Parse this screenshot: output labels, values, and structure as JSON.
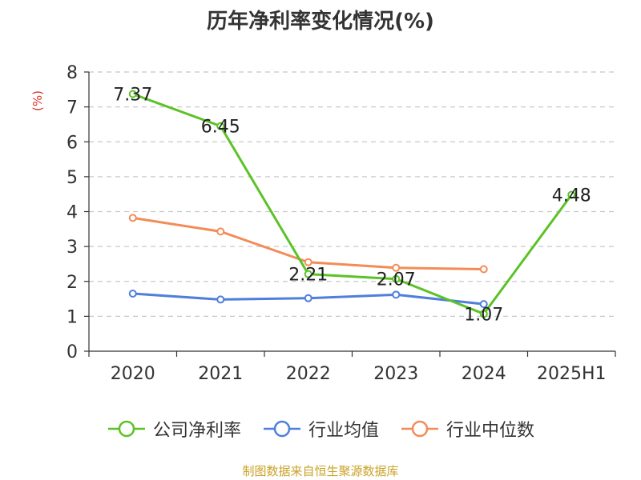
{
  "chart_data": {
    "type": "line",
    "title": "历年净利率变化情况(%)",
    "ylabel": "(%)",
    "xlabel": "",
    "categories": [
      "2020",
      "2021",
      "2022",
      "2023",
      "2024",
      "2025H1"
    ],
    "ylim": [
      0,
      8
    ],
    "yticks": [
      "0",
      "1",
      "2",
      "3",
      "4",
      "5",
      "6",
      "7",
      "8"
    ],
    "grid": true,
    "legend_position": "bottom",
    "series": [
      {
        "name": "公司净利率",
        "color": "#5bc227",
        "values": [
          7.37,
          6.45,
          2.21,
          2.07,
          1.07,
          4.48
        ],
        "labels": [
          "7.37",
          "6.45",
          "2.21",
          "2.07",
          "1.07",
          "4.48"
        ]
      },
      {
        "name": "行业均值",
        "color": "#4f7fdb",
        "values": [
          1.65,
          1.48,
          1.52,
          1.62,
          1.35,
          null
        ]
      },
      {
        "name": "行业中位数",
        "color": "#f28c57",
        "values": [
          3.82,
          3.43,
          2.55,
          2.39,
          2.35,
          null
        ]
      }
    ],
    "source": "制图数据来自恒生聚源数据库"
  }
}
